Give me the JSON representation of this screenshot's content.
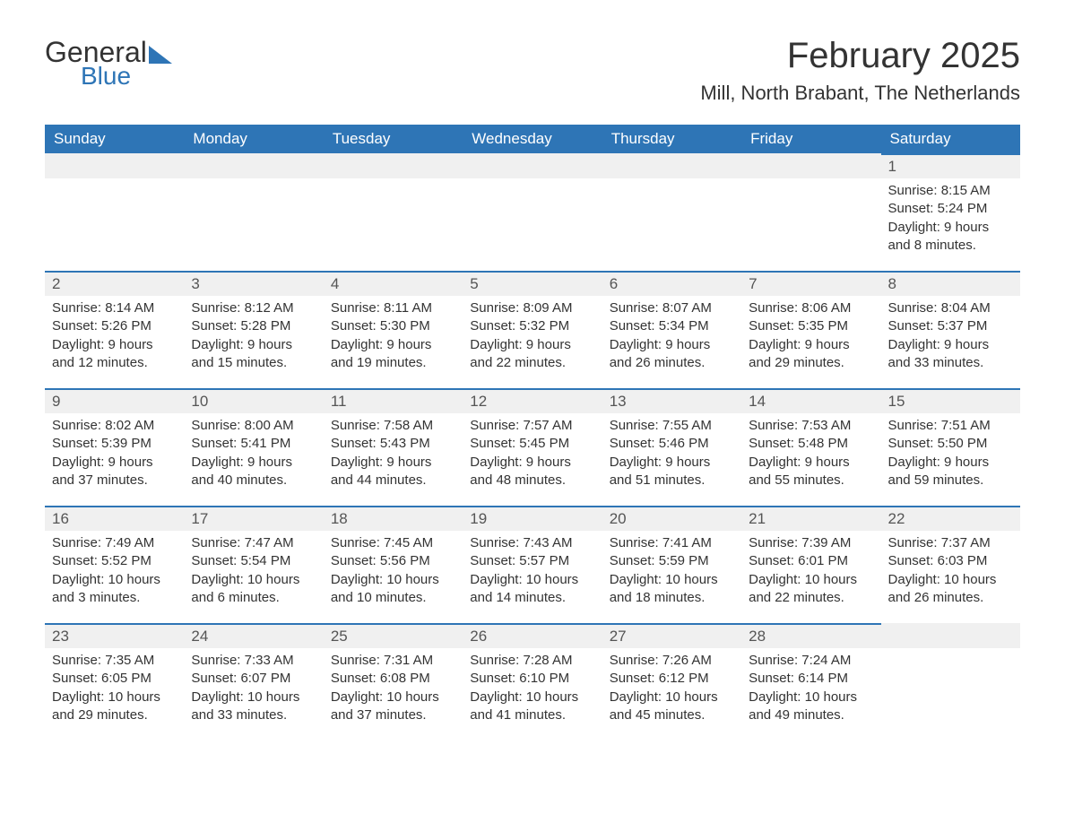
{
  "brand": {
    "general": "General",
    "blue": "Blue"
  },
  "header": {
    "title": "February 2025",
    "subtitle": "Mill, North Brabant, The Netherlands"
  },
  "colors": {
    "accent": "#2e75b6",
    "header_bg": "#2e75b6",
    "header_text": "#ffffff",
    "day_bg": "#f0f0f0",
    "text": "#333333",
    "background": "#ffffff"
  },
  "fonts": {
    "title_size": 40,
    "subtitle_size": 22,
    "header_size": 17,
    "body_size": 15
  },
  "calendar": {
    "columns": [
      "Sunday",
      "Monday",
      "Tuesday",
      "Wednesday",
      "Thursday",
      "Friday",
      "Saturday"
    ],
    "first_weekday_index": 6,
    "days_in_month": 28,
    "days": [
      {
        "n": 1,
        "sunrise": "8:15 AM",
        "sunset": "5:24 PM",
        "daylight": "9 hours and 8 minutes."
      },
      {
        "n": 2,
        "sunrise": "8:14 AM",
        "sunset": "5:26 PM",
        "daylight": "9 hours and 12 minutes."
      },
      {
        "n": 3,
        "sunrise": "8:12 AM",
        "sunset": "5:28 PM",
        "daylight": "9 hours and 15 minutes."
      },
      {
        "n": 4,
        "sunrise": "8:11 AM",
        "sunset": "5:30 PM",
        "daylight": "9 hours and 19 minutes."
      },
      {
        "n": 5,
        "sunrise": "8:09 AM",
        "sunset": "5:32 PM",
        "daylight": "9 hours and 22 minutes."
      },
      {
        "n": 6,
        "sunrise": "8:07 AM",
        "sunset": "5:34 PM",
        "daylight": "9 hours and 26 minutes."
      },
      {
        "n": 7,
        "sunrise": "8:06 AM",
        "sunset": "5:35 PM",
        "daylight": "9 hours and 29 minutes."
      },
      {
        "n": 8,
        "sunrise": "8:04 AM",
        "sunset": "5:37 PM",
        "daylight": "9 hours and 33 minutes."
      },
      {
        "n": 9,
        "sunrise": "8:02 AM",
        "sunset": "5:39 PM",
        "daylight": "9 hours and 37 minutes."
      },
      {
        "n": 10,
        "sunrise": "8:00 AM",
        "sunset": "5:41 PM",
        "daylight": "9 hours and 40 minutes."
      },
      {
        "n": 11,
        "sunrise": "7:58 AM",
        "sunset": "5:43 PM",
        "daylight": "9 hours and 44 minutes."
      },
      {
        "n": 12,
        "sunrise": "7:57 AM",
        "sunset": "5:45 PM",
        "daylight": "9 hours and 48 minutes."
      },
      {
        "n": 13,
        "sunrise": "7:55 AM",
        "sunset": "5:46 PM",
        "daylight": "9 hours and 51 minutes."
      },
      {
        "n": 14,
        "sunrise": "7:53 AM",
        "sunset": "5:48 PM",
        "daylight": "9 hours and 55 minutes."
      },
      {
        "n": 15,
        "sunrise": "7:51 AM",
        "sunset": "5:50 PM",
        "daylight": "9 hours and 59 minutes."
      },
      {
        "n": 16,
        "sunrise": "7:49 AM",
        "sunset": "5:52 PM",
        "daylight": "10 hours and 3 minutes."
      },
      {
        "n": 17,
        "sunrise": "7:47 AM",
        "sunset": "5:54 PM",
        "daylight": "10 hours and 6 minutes."
      },
      {
        "n": 18,
        "sunrise": "7:45 AM",
        "sunset": "5:56 PM",
        "daylight": "10 hours and 10 minutes."
      },
      {
        "n": 19,
        "sunrise": "7:43 AM",
        "sunset": "5:57 PM",
        "daylight": "10 hours and 14 minutes."
      },
      {
        "n": 20,
        "sunrise": "7:41 AM",
        "sunset": "5:59 PM",
        "daylight": "10 hours and 18 minutes."
      },
      {
        "n": 21,
        "sunrise": "7:39 AM",
        "sunset": "6:01 PM",
        "daylight": "10 hours and 22 minutes."
      },
      {
        "n": 22,
        "sunrise": "7:37 AM",
        "sunset": "6:03 PM",
        "daylight": "10 hours and 26 minutes."
      },
      {
        "n": 23,
        "sunrise": "7:35 AM",
        "sunset": "6:05 PM",
        "daylight": "10 hours and 29 minutes."
      },
      {
        "n": 24,
        "sunrise": "7:33 AM",
        "sunset": "6:07 PM",
        "daylight": "10 hours and 33 minutes."
      },
      {
        "n": 25,
        "sunrise": "7:31 AM",
        "sunset": "6:08 PM",
        "daylight": "10 hours and 37 minutes."
      },
      {
        "n": 26,
        "sunrise": "7:28 AM",
        "sunset": "6:10 PM",
        "daylight": "10 hours and 41 minutes."
      },
      {
        "n": 27,
        "sunrise": "7:26 AM",
        "sunset": "6:12 PM",
        "daylight": "10 hours and 45 minutes."
      },
      {
        "n": 28,
        "sunrise": "7:24 AM",
        "sunset": "6:14 PM",
        "daylight": "10 hours and 49 minutes."
      }
    ]
  },
  "labels": {
    "sunrise": "Sunrise: ",
    "sunset": "Sunset: ",
    "daylight": "Daylight: "
  }
}
